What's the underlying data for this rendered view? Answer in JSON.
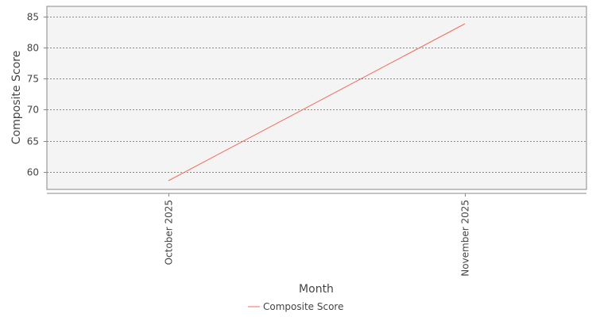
{
  "chart_data": {
    "type": "line",
    "title": "",
    "xlabel": "Month",
    "ylabel": "Composite Score",
    "categories": [
      "October 2025",
      "November 2025"
    ],
    "series": [
      {
        "name": "Composite Score",
        "values": [
          58.6,
          83.8
        ],
        "color": "#f26c5c"
      }
    ],
    "ylim": [
      57.2,
      86.6
    ],
    "yticks": [
      60,
      65,
      70,
      75,
      80,
      85
    ],
    "grid": true,
    "legend_position": "bottom",
    "colors": {
      "plot_background": "#f4f4f4",
      "grid": "#888888",
      "axis": "#888888"
    }
  }
}
